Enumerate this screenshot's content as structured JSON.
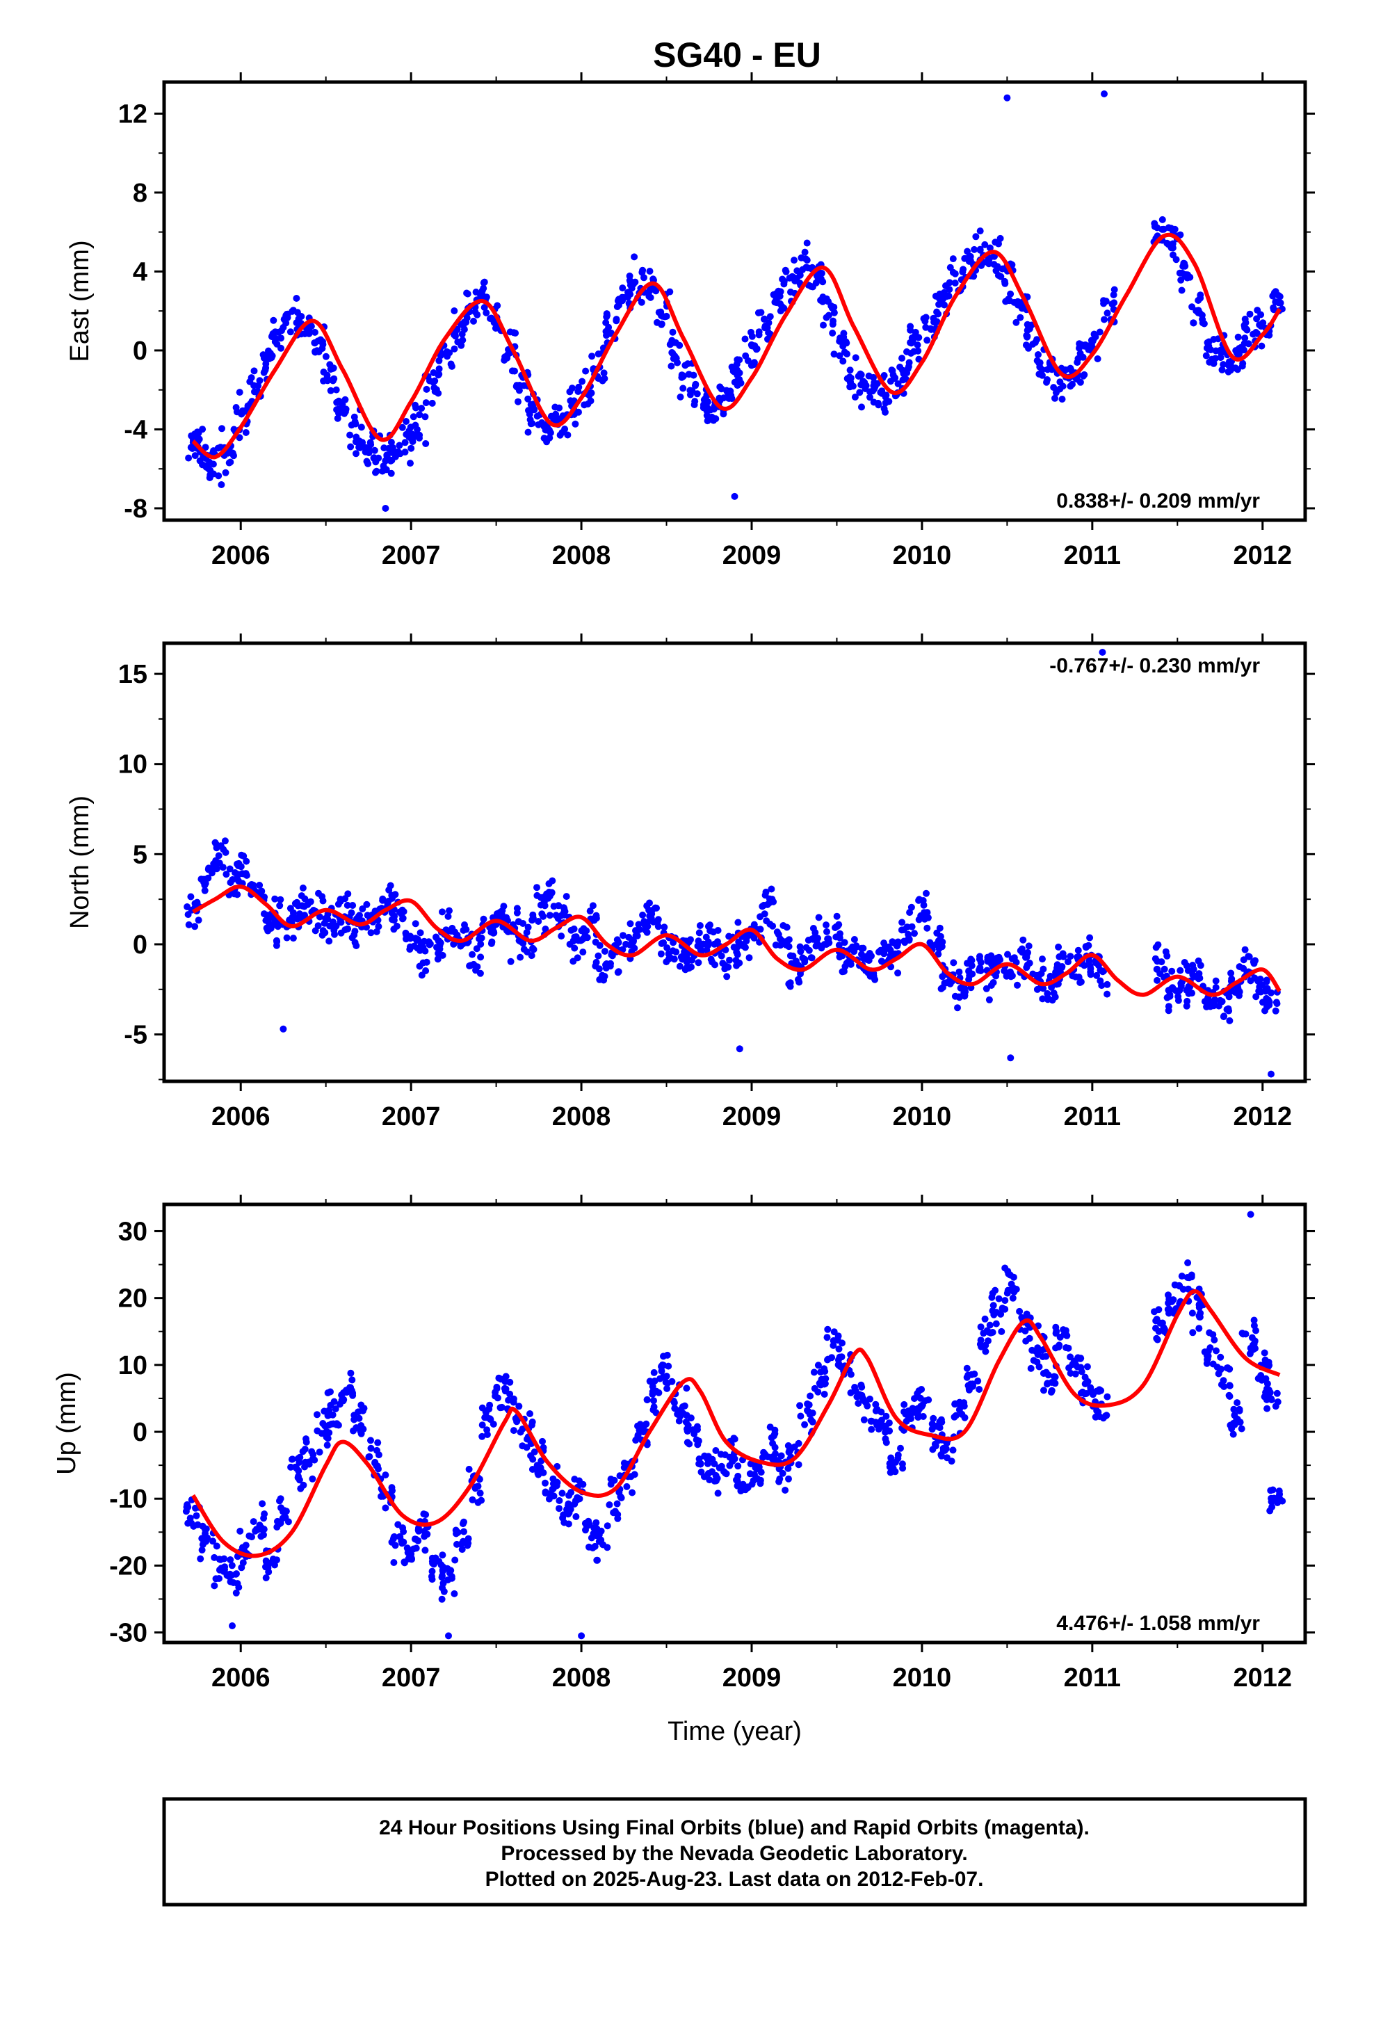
{
  "title": "SG40 - EU",
  "chart_data": [
    {
      "type": "scatter",
      "component": "East",
      "ylabel": "East (mm)",
      "xlabel": "",
      "xlim": [
        2005.55,
        2012.25
      ],
      "ylim": [
        -8.6,
        13.6
      ],
      "xticks": [
        2006,
        2007,
        2008,
        2009,
        2010,
        2011,
        2012
      ],
      "yticks": [
        -8,
        -4,
        0,
        4,
        8,
        12
      ],
      "rate_label": "0.838+/- 0.209 mm/yr",
      "rate_position": "bottom-right",
      "series": [
        {
          "name": "",
          "style": "points",
          "color": "#0000ff",
          "x": [
            2005.72,
            2005.78,
            2005.85,
            2005.92,
            2006.0,
            2006.08,
            2006.15,
            2006.22,
            2006.3,
            2006.38,
            2006.45,
            2006.52,
            2006.6,
            2006.68,
            2006.75,
            2006.82,
            2006.9,
            2006.97,
            2007.05,
            2007.12,
            2007.2,
            2007.28,
            2007.35,
            2007.42,
            2007.5,
            2007.58,
            2007.65,
            2007.72,
            2007.8,
            2007.88,
            2007.95,
            2008.02,
            2008.1,
            2008.18,
            2008.25,
            2008.32,
            2008.4,
            2008.48,
            2008.55,
            2008.62,
            2008.7,
            2008.78,
            2008.85,
            2008.92,
            2009.0,
            2009.08,
            2009.15,
            2009.22,
            2009.3,
            2009.38,
            2009.45,
            2009.52,
            2009.6,
            2009.68,
            2009.75,
            2009.82,
            2009.9,
            2009.97,
            2010.05,
            2010.12,
            2010.2,
            2010.28,
            2010.35,
            2010.42,
            2010.5,
            2010.58,
            2010.65,
            2010.72,
            2010.8,
            2010.88,
            2010.95,
            2011.02,
            2011.1,
            2011.4,
            2011.48,
            2011.55,
            2011.62,
            2011.7,
            2011.78,
            2011.85,
            2011.92,
            2012.0,
            2012.08
          ],
          "y": [
            -4.6,
            -5.0,
            -5.8,
            -5.2,
            -3.4,
            -2.0,
            -0.6,
            0.8,
            1.6,
            1.2,
            0.2,
            -1.2,
            -3.0,
            -4.2,
            -5.0,
            -5.6,
            -5.2,
            -4.4,
            -3.4,
            -2.0,
            -0.4,
            1.0,
            2.0,
            2.4,
            1.6,
            0.0,
            -1.8,
            -3.2,
            -3.8,
            -3.6,
            -3.0,
            -2.0,
            -0.6,
            1.0,
            2.6,
            3.4,
            3.2,
            2.0,
            0.2,
            -1.6,
            -2.6,
            -2.8,
            -2.4,
            -1.4,
            0.0,
            1.4,
            2.4,
            3.6,
            4.2,
            3.6,
            2.0,
            0.4,
            -1.2,
            -2.0,
            -2.2,
            -1.8,
            -1.0,
            0.2,
            1.4,
            2.6,
            3.6,
            4.6,
            5.0,
            4.8,
            3.6,
            2.0,
            0.4,
            -0.8,
            -1.4,
            -1.2,
            -0.4,
            0.6,
            2.0,
            5.8,
            5.4,
            4.0,
            2.0,
            0.2,
            -0.4,
            -0.2,
            0.6,
            1.4,
            2.2
          ]
        },
        {
          "name": "",
          "style": "outliers",
          "color": "#0000ff",
          "x": [
            2010.5,
            2011.07,
            2008.9,
            2006.85
          ],
          "y": [
            12.8,
            13.0,
            -7.4,
            -8.0
          ]
        },
        {
          "name": "",
          "style": "line",
          "color": "#ff0000",
          "x": [
            2005.72,
            2005.85,
            2006.0,
            2006.2,
            2006.42,
            2006.6,
            2006.82,
            2007.0,
            2007.2,
            2007.42,
            2007.6,
            2007.82,
            2008.0,
            2008.2,
            2008.42,
            2008.6,
            2008.82,
            2009.0,
            2009.2,
            2009.42,
            2009.6,
            2009.82,
            2010.0,
            2010.2,
            2010.42,
            2010.6,
            2010.82,
            2011.0,
            2011.2,
            2011.42,
            2011.6,
            2011.82,
            2012.0,
            2012.1
          ],
          "y": [
            -4.6,
            -5.4,
            -3.9,
            -1.0,
            1.5,
            -1.0,
            -4.5,
            -2.6,
            0.6,
            2.5,
            0.0,
            -3.7,
            -2.4,
            0.8,
            3.4,
            0.6,
            -2.9,
            -1.4,
            1.8,
            4.2,
            1.2,
            -2.1,
            -0.6,
            2.8,
            5.0,
            2.6,
            -1.2,
            -0.2,
            2.8,
            5.8,
            4.4,
            -0.3,
            0.8,
            2.1
          ]
        }
      ]
    },
    {
      "type": "scatter",
      "component": "North",
      "ylabel": "North (mm)",
      "xlabel": "",
      "xlim": [
        2005.55,
        2012.25
      ],
      "ylim": [
        -7.6,
        16.7
      ],
      "xticks": [
        2006,
        2007,
        2008,
        2009,
        2010,
        2011,
        2012
      ],
      "yticks": [
        -5,
        0,
        5,
        10,
        15
      ],
      "rate_label": "-0.767+/- 0.230 mm/yr",
      "rate_position": "top-right",
      "series": [
        {
          "name": "",
          "style": "points",
          "color": "#0000ff",
          "x": [
            2005.72,
            2005.8,
            2005.88,
            2005.95,
            2006.02,
            2006.1,
            2006.18,
            2006.25,
            2006.33,
            2006.4,
            2006.48,
            2006.55,
            2006.62,
            2006.7,
            2006.78,
            2006.85,
            2006.92,
            2007.0,
            2007.08,
            2007.15,
            2007.22,
            2007.3,
            2007.38,
            2007.45,
            2007.52,
            2007.6,
            2007.68,
            2007.75,
            2007.82,
            2007.9,
            2007.97,
            2008.05,
            2008.12,
            2008.2,
            2008.28,
            2008.35,
            2008.42,
            2008.5,
            2008.58,
            2008.65,
            2008.72,
            2008.8,
            2008.88,
            2008.95,
            2009.02,
            2009.1,
            2009.18,
            2009.25,
            2009.32,
            2009.4,
            2009.48,
            2009.55,
            2009.62,
            2009.7,
            2009.78,
            2009.85,
            2009.92,
            2010.0,
            2010.08,
            2010.15,
            2010.22,
            2010.3,
            2010.38,
            2010.45,
            2010.52,
            2010.6,
            2010.68,
            2010.75,
            2010.82,
            2010.9,
            2010.97,
            2011.05,
            2011.4,
            2011.48,
            2011.55,
            2011.62,
            2011.7,
            2011.78,
            2011.85,
            2011.92,
            2012.0,
            2012.05
          ],
          "y": [
            1.8,
            3.8,
            4.8,
            3.5,
            4.2,
            3.0,
            1.5,
            1.0,
            1.4,
            2.0,
            1.6,
            1.2,
            1.8,
            1.0,
            1.4,
            2.4,
            1.8,
            0.2,
            -0.6,
            0.0,
            0.8,
            0.2,
            -0.4,
            0.8,
            1.4,
            0.6,
            0.2,
            1.8,
            2.6,
            1.4,
            0.4,
            1.0,
            -1.0,
            -0.6,
            0.0,
            1.0,
            1.6,
            0.2,
            -0.4,
            -0.6,
            0.2,
            -0.4,
            -0.8,
            0.0,
            0.6,
            2.4,
            0.4,
            -1.4,
            -0.4,
            0.6,
            0.4,
            -0.8,
            -0.4,
            -1.2,
            -0.6,
            -0.2,
            0.6,
            1.8,
            0.2,
            -1.8,
            -2.6,
            -1.2,
            -1.6,
            -1.0,
            -1.4,
            -0.8,
            -1.8,
            -2.2,
            -1.2,
            -1.4,
            -0.6,
            -1.6,
            -1.2,
            -2.6,
            -2.2,
            -1.8,
            -2.8,
            -3.2,
            -2.2,
            -1.2,
            -2.4,
            -2.8
          ]
        },
        {
          "name": "",
          "style": "outliers",
          "color": "#0000ff",
          "x": [
            2011.06,
            2006.25,
            2008.93,
            2010.52,
            2012.05
          ],
          "y": [
            16.2,
            -4.7,
            -5.8,
            -6.3,
            -7.2
          ]
        },
        {
          "name": "",
          "style": "line",
          "color": "#ff0000",
          "x": [
            2005.72,
            2005.85,
            2006.0,
            2006.15,
            2006.3,
            2006.5,
            2006.7,
            2006.85,
            2007.0,
            2007.15,
            2007.3,
            2007.5,
            2007.7,
            2007.85,
            2008.0,
            2008.15,
            2008.3,
            2008.5,
            2008.7,
            2008.85,
            2009.0,
            2009.15,
            2009.3,
            2009.5,
            2009.7,
            2009.85,
            2010.0,
            2010.15,
            2010.3,
            2010.5,
            2010.7,
            2010.85,
            2011.0,
            2011.15,
            2011.3,
            2011.5,
            2011.7,
            2011.85,
            2012.0,
            2012.1
          ],
          "y": [
            1.8,
            2.5,
            3.2,
            2.2,
            1.0,
            1.9,
            1.1,
            1.9,
            2.4,
            0.9,
            0.2,
            1.3,
            0.2,
            0.9,
            1.5,
            0.0,
            -0.6,
            0.5,
            -0.6,
            0.0,
            0.8,
            -0.8,
            -1.4,
            -0.3,
            -1.4,
            -0.8,
            0.0,
            -1.6,
            -2.2,
            -1.1,
            -2.2,
            -1.6,
            -0.6,
            -2.0,
            -2.8,
            -1.8,
            -2.8,
            -2.1,
            -1.4,
            -2.6
          ]
        }
      ]
    },
    {
      "type": "scatter",
      "component": "Up",
      "ylabel": "Up (mm)",
      "xlabel": "Time (year)",
      "xlim": [
        2005.55,
        2012.25
      ],
      "ylim": [
        -31.5,
        34
      ],
      "xticks": [
        2006,
        2007,
        2008,
        2009,
        2010,
        2011,
        2012
      ],
      "yticks": [
        -30,
        -20,
        -10,
        0,
        10,
        20,
        30
      ],
      "rate_label": "4.476+/- 1.058 mm/yr",
      "rate_position": "bottom-right",
      "series": [
        {
          "name": "",
          "style": "points",
          "color": "#0000ff",
          "x": [
            2005.72,
            2005.8,
            2005.88,
            2005.95,
            2006.02,
            2006.1,
            2006.18,
            2006.25,
            2006.33,
            2006.4,
            2006.48,
            2006.55,
            2006.62,
            2006.7,
            2006.78,
            2006.85,
            2006.92,
            2007.0,
            2007.08,
            2007.15,
            2007.22,
            2007.3,
            2007.38,
            2007.45,
            2007.52,
            2007.6,
            2007.68,
            2007.75,
            2007.82,
            2007.9,
            2007.97,
            2008.05,
            2008.12,
            2008.2,
            2008.28,
            2008.35,
            2008.42,
            2008.5,
            2008.58,
            2008.65,
            2008.72,
            2008.8,
            2008.88,
            2008.95,
            2009.02,
            2009.1,
            2009.18,
            2009.25,
            2009.32,
            2009.4,
            2009.48,
            2009.55,
            2009.62,
            2009.7,
            2009.78,
            2009.85,
            2009.92,
            2010.0,
            2010.08,
            2010.15,
            2010.22,
            2010.3,
            2010.38,
            2010.45,
            2010.52,
            2010.6,
            2010.68,
            2010.75,
            2010.82,
            2010.9,
            2010.97,
            2011.05,
            2011.4,
            2011.48,
            2011.55,
            2011.62,
            2011.7,
            2011.78,
            2011.85,
            2011.92,
            2012.0,
            2012.05,
            2012.08
          ],
          "y": [
            -12,
            -16,
            -20,
            -22,
            -18,
            -14,
            -20,
            -12,
            -6,
            -4,
            0,
            4,
            6,
            2,
            -4,
            -10,
            -16,
            -18,
            -14,
            -20,
            -22,
            -16,
            -8,
            2,
            6,
            4,
            0,
            -4,
            -8,
            -12,
            -10,
            -14,
            -16,
            -10,
            -6,
            0,
            6,
            8,
            4,
            0,
            -4,
            -6,
            -4,
            -8,
            -6,
            -2,
            -6,
            -4,
            2,
            8,
            12,
            10,
            6,
            2,
            0,
            -4,
            2,
            4,
            0,
            -2,
            2,
            8,
            14,
            18,
            22,
            16,
            12,
            8,
            14,
            10,
            6,
            4,
            16,
            20,
            22,
            18,
            12,
            8,
            2,
            14,
            10,
            6,
            -10
          ]
        },
        {
          "name": "",
          "style": "outliers",
          "color": "#0000ff",
          "x": [
            2011.93,
            2008.0,
            2007.22,
            2005.95
          ],
          "y": [
            32.5,
            -30.5,
            -30.5,
            -29
          ]
        },
        {
          "name": "",
          "style": "line",
          "color": "#ff0000",
          "x": [
            2005.72,
            2005.9,
            2006.1,
            2006.3,
            2006.5,
            2006.6,
            2006.75,
            2006.95,
            2007.15,
            2007.35,
            2007.55,
            2007.62,
            2007.8,
            2008.0,
            2008.2,
            2008.4,
            2008.6,
            2008.7,
            2008.85,
            2009.05,
            2009.25,
            2009.45,
            2009.6,
            2009.68,
            2009.85,
            2010.05,
            2010.25,
            2010.45,
            2010.6,
            2010.7,
            2010.9,
            2011.1,
            2011.3,
            2011.5,
            2011.6,
            2011.7,
            2011.9,
            2012.1
          ],
          "y": [
            -9.5,
            -16.5,
            -18.5,
            -15.0,
            -5.0,
            -1.5,
            -5.0,
            -12.5,
            -13.5,
            -8.0,
            1.5,
            3.0,
            -4.5,
            -9.0,
            -8.5,
            0.0,
            7.5,
            6.0,
            -1.5,
            -4.5,
            -4.0,
            4.0,
            11.5,
            11.0,
            2.0,
            -0.5,
            0.0,
            10.5,
            16.5,
            14.0,
            5.5,
            4.0,
            7.0,
            17.5,
            21.0,
            18.0,
            11.0,
            8.5
          ]
        }
      ]
    }
  ],
  "footer": {
    "line1": "24 Hour Positions Using Final Orbits (blue) and Rapid Orbits (magenta).",
    "line2": "Processed by the Nevada Geodetic Laboratory.",
    "line3": "Plotted on 2025-Aug-23. Last data on 2012-Feb-07."
  }
}
